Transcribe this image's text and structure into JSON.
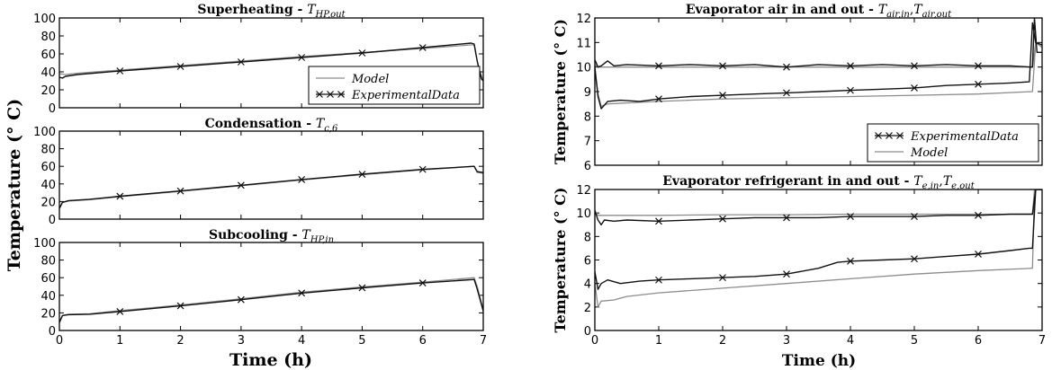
{
  "figure": {
    "left_ylabel": "Temperature (° C)",
    "left_xlabel": "Time (h)",
    "right_xlabel": "Time (h)"
  },
  "colors": {
    "model": "#8c8c8c",
    "experimental": "#111111"
  },
  "chart_data": [
    {
      "type": "line",
      "title": "Superheating - T_HP,out",
      "title_main": "Superheating - ",
      "title_sym": "T",
      "title_sub": "HP,out",
      "xlim": [
        0,
        7
      ],
      "ylim": [
        0,
        100
      ],
      "yticks": [
        "0",
        "20",
        "40",
        "60",
        "80",
        "100"
      ],
      "xticks": [],
      "grid": false,
      "legend": {
        "placement": "lower-right",
        "entries": [
          "Model",
          "ExperimentalData"
        ]
      },
      "series": [
        {
          "name": "Model",
          "style": "model",
          "x": [
            0,
            0.1,
            0.3,
            1,
            2,
            3,
            4,
            5,
            6,
            6.8,
            6.85,
            6.92,
            7.0
          ],
          "y": [
            38,
            37,
            38.5,
            42,
            47,
            52,
            57,
            61.5,
            66,
            70,
            70,
            45,
            30
          ]
        },
        {
          "name": "ExperimentalData",
          "style": "experimental",
          "x": [
            0,
            0.05,
            0.1,
            0.3,
            1,
            2,
            3,
            4,
            5,
            6,
            6.8,
            6.85,
            6.9,
            6.97,
            7.0
          ],
          "y": [
            34,
            33,
            35,
            37,
            41,
            46,
            51,
            56,
            61,
            67,
            72,
            71,
            52,
            32,
            30
          ],
          "markers_x": [
            1,
            2,
            3,
            4,
            5,
            6
          ]
        }
      ]
    },
    {
      "type": "line",
      "title": "Condensation - T_c,6",
      "title_main": "Condensation - ",
      "title_sym": "T",
      "title_sub": "c,6",
      "xlim": [
        0,
        7
      ],
      "ylim": [
        0,
        100
      ],
      "yticks": [
        "0",
        "20",
        "40",
        "60",
        "80",
        "100"
      ],
      "xticks": [],
      "grid": false,
      "series": [
        {
          "name": "Model",
          "style": "model",
          "x": [
            0,
            0.05,
            0.15,
            0.5,
            1,
            2,
            3,
            4,
            5,
            6,
            6.85,
            6.9,
            7.0
          ],
          "y": [
            13,
            19,
            20.5,
            22,
            25.5,
            31.5,
            38,
            44.5,
            50.5,
            56,
            60,
            53,
            52
          ]
        },
        {
          "name": "ExperimentalData",
          "style": "experimental",
          "x": [
            0,
            0.05,
            0.15,
            0.5,
            1,
            2,
            3,
            4,
            5,
            6,
            6.85,
            6.9,
            7.0
          ],
          "y": [
            12,
            19,
            21,
            22.5,
            26,
            32,
            38.5,
            45,
            51,
            56.5,
            60,
            54,
            53
          ],
          "markers_x": [
            1,
            2,
            3,
            4,
            5,
            6
          ]
        }
      ]
    },
    {
      "type": "line",
      "title": "Subcooling - T_HP,in",
      "title_main": "Subcooling - ",
      "title_sym": "T",
      "title_sub": "HP,in",
      "xlim": [
        0,
        7
      ],
      "ylim": [
        0,
        100
      ],
      "yticks": [
        "0",
        "20",
        "40",
        "60",
        "80",
        "100"
      ],
      "xticks": [
        "0",
        "1",
        "2",
        "3",
        "4",
        "5",
        "6",
        "7"
      ],
      "grid": false,
      "series": [
        {
          "name": "Model",
          "style": "model",
          "x": [
            0,
            0.05,
            0.15,
            0.5,
            1,
            2,
            3,
            4,
            5,
            6,
            6.85,
            6.9,
            7.0
          ],
          "y": [
            10,
            17,
            18.5,
            19,
            22.5,
            29,
            36,
            43.5,
            49.5,
            55,
            60,
            50,
            24
          ]
        },
        {
          "name": "ExperimentalData",
          "style": "experimental",
          "x": [
            0,
            0.05,
            0.15,
            0.5,
            1,
            2,
            3,
            4,
            5,
            6,
            6.85,
            6.9,
            7.0
          ],
          "y": [
            9,
            17,
            18,
            18.5,
            21.5,
            28,
            35,
            42.5,
            48.5,
            54,
            58,
            47,
            22
          ],
          "markers_x": [
            1,
            2,
            3,
            4,
            5,
            6
          ]
        }
      ]
    },
    {
      "type": "line",
      "title": "Evaporator air in and out - T_air,in, T_air,out",
      "title_main": "Evaporator air in and out - ",
      "title_sym": "T",
      "title_sub": "air,in",
      "title_sym2": "T",
      "title_sub2": "air,out",
      "xlim": [
        0,
        7
      ],
      "ylim": [
        6,
        12
      ],
      "yticks": [
        "6",
        "7",
        "8",
        "9",
        "10",
        "11",
        "12"
      ],
      "xticks": [],
      "grid": false,
      "legend": {
        "placement": "lower-right",
        "entries": [
          "ExperimentalData",
          "Model"
        ]
      },
      "series": [
        {
          "name": "Model",
          "style": "model",
          "x": [
            0,
            0.05,
            0.15,
            1,
            2,
            3,
            4,
            5,
            6,
            6.85,
            6.9,
            7.0
          ],
          "y": [
            10.1,
            10.0,
            10.0,
            10.0,
            10.0,
            10.0,
            10.0,
            10.0,
            10.0,
            10.0,
            11.0,
            10.9
          ]
        },
        {
          "name": "Model",
          "style": "model",
          "x": [
            0,
            0.05,
            0.1,
            0.2,
            1,
            2,
            3,
            4,
            5,
            6,
            6.85,
            6.9,
            7.0
          ],
          "y": [
            9.9,
            8.9,
            8.4,
            8.5,
            8.6,
            8.7,
            8.75,
            8.8,
            8.85,
            8.9,
            9.0,
            11.0,
            10.8
          ]
        },
        {
          "name": "ExperimentalData",
          "style": "experimental",
          "x": [
            0,
            0.05,
            0.1,
            0.2,
            0.3,
            0.5,
            1,
            1.5,
            2,
            2.5,
            3,
            3.5,
            4,
            4.5,
            5,
            5.5,
            6,
            6.5,
            6.85,
            6.88,
            6.92,
            7.0
          ],
          "y": [
            10.3,
            10.0,
            10.05,
            10.25,
            10.05,
            10.1,
            10.05,
            10.1,
            10.05,
            10.1,
            10.0,
            10.1,
            10.05,
            10.1,
            10.05,
            10.1,
            10.05,
            10.05,
            10.0,
            12.0,
            10.6,
            10.6
          ],
          "markers_x": [
            1,
            2,
            3,
            4,
            5,
            6
          ]
        },
        {
          "name": "ExperimentalData",
          "style": "experimental",
          "x": [
            0,
            0.05,
            0.1,
            0.2,
            0.4,
            0.7,
            1,
            1.5,
            2,
            2.5,
            3,
            3.5,
            4,
            4.5,
            5,
            5.5,
            6,
            6.5,
            6.8,
            6.85,
            6.9,
            7.0
          ],
          "y": [
            10.0,
            8.8,
            8.3,
            8.6,
            8.65,
            8.6,
            8.7,
            8.8,
            8.85,
            8.9,
            8.95,
            9.0,
            9.05,
            9.1,
            9.15,
            9.25,
            9.3,
            9.35,
            9.4,
            11.8,
            11.0,
            10.9
          ],
          "markers_x": [
            1,
            2,
            3,
            4,
            5,
            6
          ]
        }
      ]
    },
    {
      "type": "line",
      "title": "Evaporator refrigerant in and out - T_e,in, T_e,out",
      "title_main": "Evaporator refrigerant in and out - ",
      "title_sym": "T",
      "title_sub": "e,in",
      "title_sym2": "T",
      "title_sub2": "e,out",
      "xlim": [
        0,
        7
      ],
      "ylim": [
        0,
        12
      ],
      "yticks": [
        "0",
        "2",
        "4",
        "6",
        "8",
        "10",
        "12"
      ],
      "xticks": [
        "0",
        "1",
        "2",
        "3",
        "4",
        "5",
        "6",
        "7"
      ],
      "grid": false,
      "series": [
        {
          "name": "Model",
          "style": "model",
          "x": [
            0,
            0.05,
            0.15,
            1,
            2,
            3,
            4,
            5,
            6,
            6.85,
            6.88,
            7.0
          ],
          "y": [
            10.2,
            9.8,
            9.8,
            9.8,
            9.85,
            9.85,
            9.9,
            9.9,
            9.9,
            9.9,
            12.0,
            12.0
          ]
        },
        {
          "name": "Model",
          "style": "model",
          "x": [
            0,
            0.05,
            0.1,
            0.3,
            0.5,
            1,
            2,
            3,
            4,
            5,
            6,
            6.85,
            6.88,
            7.0
          ],
          "y": [
            4.0,
            2.0,
            2.5,
            2.6,
            2.9,
            3.2,
            3.6,
            4.0,
            4.4,
            4.8,
            5.1,
            5.3,
            12.0,
            12.0
          ]
        },
        {
          "name": "ExperimentalData",
          "style": "experimental",
          "x": [
            0,
            0.05,
            0.1,
            0.15,
            0.3,
            0.5,
            1,
            1.5,
            2,
            2.5,
            3,
            3.5,
            4,
            4.5,
            5,
            5.5,
            6,
            6.5,
            6.85,
            6.9,
            7.0
          ],
          "y": [
            10.2,
            9.4,
            9.0,
            9.4,
            9.3,
            9.4,
            9.3,
            9.4,
            9.5,
            9.6,
            9.6,
            9.6,
            9.7,
            9.7,
            9.7,
            9.8,
            9.8,
            9.9,
            9.9,
            12.0,
            12.0
          ],
          "markers_x": [
            1,
            2,
            3,
            4,
            5,
            6
          ]
        },
        {
          "name": "ExperimentalData",
          "style": "experimental",
          "x": [
            0,
            0.05,
            0.1,
            0.2,
            0.4,
            0.7,
            1,
            1.5,
            2,
            2.5,
            3,
            3.5,
            3.8,
            4,
            4.5,
            5,
            5.5,
            6,
            6.5,
            6.8,
            6.85,
            6.9,
            7.0
          ],
          "y": [
            5.0,
            3.5,
            4.0,
            4.3,
            4.0,
            4.2,
            4.3,
            4.4,
            4.5,
            4.6,
            4.8,
            5.3,
            5.8,
            5.9,
            6.0,
            6.1,
            6.3,
            6.5,
            6.8,
            7.0,
            7.0,
            12.0,
            12.0
          ],
          "markers_x": [
            1,
            2,
            3,
            4,
            5,
            6
          ]
        }
      ]
    }
  ]
}
